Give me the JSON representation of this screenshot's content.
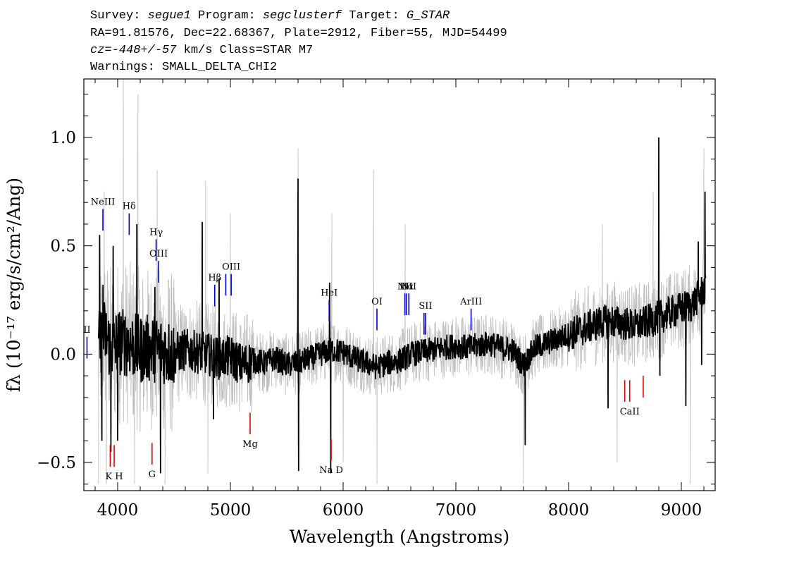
{
  "header": {
    "line1": {
      "l1": "Survey: ",
      "survey": "segue1",
      "l2": " Program: ",
      "program": "segclusterf",
      "l3": " Target: ",
      "target": "G_STAR"
    },
    "line2": "RA=91.81576, Dec=22.68367, Plate=2912, Fiber=55, MJD=54499",
    "line3": {
      "cz": "cz=-448+/-57",
      "rest": " km/s Class=STAR M7"
    },
    "line4": "Warnings: SMALL_DELTA_CHI2"
  },
  "colors": {
    "flux": "#000000",
    "error": "#c0c0c0",
    "emission": "#0000cc",
    "absorption": "#dd0000"
  },
  "chart_data": {
    "type": "line",
    "xlabel": "Wavelength (Angstroms)",
    "ylabel": "fλ (10⁻¹⁷ erg/s/cm²/Ang)",
    "xlim": [
      3700,
      9300
    ],
    "ylim": [
      -0.63,
      1.27
    ],
    "xticks": [
      4000,
      5000,
      6000,
      7000,
      8000,
      9000
    ],
    "yticks": [
      -0.5,
      0.0,
      0.5,
      1.0
    ],
    "ytick_labels": [
      "−0.5",
      "0.0",
      "0.5",
      "1.0"
    ],
    "grid": false,
    "series": [
      {
        "role": "flux",
        "points": [
          [
            3800,
            0.02
          ],
          [
            3840,
            0.05
          ],
          [
            3880,
            0.1
          ],
          [
            3920,
            0.05
          ],
          [
            3960,
            0.03
          ],
          [
            4000,
            0.06
          ],
          [
            4100,
            0.05
          ],
          [
            4200,
            0.02
          ],
          [
            4300,
            0.03
          ],
          [
            4400,
            0.02
          ],
          [
            4500,
            0.0
          ],
          [
            4600,
            0.02
          ],
          [
            4700,
            0.01
          ],
          [
            4800,
            0.0
          ],
          [
            4900,
            -0.02
          ],
          [
            5000,
            -0.01
          ],
          [
            5100,
            -0.05
          ],
          [
            5200,
            -0.03
          ],
          [
            5300,
            -0.04
          ],
          [
            5400,
            -0.02
          ],
          [
            5500,
            -0.05
          ],
          [
            5600,
            -0.04
          ],
          [
            5700,
            -0.02
          ],
          [
            5800,
            0.0
          ],
          [
            5900,
            0.02
          ],
          [
            6000,
            0.01
          ],
          [
            6100,
            -0.02
          ],
          [
            6200,
            -0.04
          ],
          [
            6300,
            -0.06
          ],
          [
            6400,
            -0.04
          ],
          [
            6500,
            -0.03
          ],
          [
            6600,
            0.0
          ],
          [
            6700,
            0.01
          ],
          [
            6800,
            0.02
          ],
          [
            6900,
            0.03
          ],
          [
            7000,
            0.04
          ],
          [
            7100,
            0.03
          ],
          [
            7200,
            0.04
          ],
          [
            7300,
            0.05
          ],
          [
            7400,
            0.03
          ],
          [
            7500,
            0.02
          ],
          [
            7600,
            -0.05
          ],
          [
            7700,
            0.03
          ],
          [
            7800,
            0.05
          ],
          [
            7900,
            0.07
          ],
          [
            8000,
            0.09
          ],
          [
            8100,
            0.11
          ],
          [
            8200,
            0.13
          ],
          [
            8300,
            0.15
          ],
          [
            8400,
            0.15
          ],
          [
            8500,
            0.14
          ],
          [
            8600,
            0.13
          ],
          [
            8700,
            0.15
          ],
          [
            8800,
            0.17
          ],
          [
            8900,
            0.19
          ],
          [
            9000,
            0.21
          ],
          [
            9100,
            0.23
          ],
          [
            9200,
            0.3
          ]
        ],
        "spikes": [
          [
            3840,
            0.55
          ],
          [
            3860,
            -0.4
          ],
          [
            3870,
            0.32
          ],
          [
            3940,
            -0.45
          ],
          [
            3960,
            0.5
          ],
          [
            4000,
            -0.4
          ],
          [
            4170,
            0.6
          ],
          [
            4260,
            -0.1
          ],
          [
            4330,
            0.31
          ],
          [
            4380,
            -0.55
          ],
          [
            4750,
            0.61
          ],
          [
            4850,
            -0.3
          ],
          [
            4900,
            0.35
          ],
          [
            5600,
            0.81
          ],
          [
            5605,
            -0.54
          ],
          [
            5880,
            0.33
          ],
          [
            5890,
            -0.55
          ],
          [
            7615,
            -0.42
          ],
          [
            8350,
            -0.25
          ],
          [
            8800,
            1.0
          ],
          [
            8810,
            -0.1
          ],
          [
            9040,
            -0.24
          ],
          [
            9150,
            0.52
          ],
          [
            9180,
            -0.05
          ],
          [
            9210,
            0.75
          ]
        ]
      },
      {
        "role": "error",
        "spikes": [
          [
            3830,
            -0.6
          ],
          [
            3880,
            0.75
          ],
          [
            3900,
            -0.6
          ],
          [
            4050,
            1.27
          ],
          [
            4150,
            -0.6
          ],
          [
            4180,
            1.2
          ],
          [
            4350,
            0.85
          ],
          [
            4420,
            -0.6
          ],
          [
            4780,
            0.8
          ],
          [
            4800,
            -0.55
          ],
          [
            5000,
            0.65
          ],
          [
            5600,
            0.95
          ],
          [
            5900,
            0.65
          ],
          [
            6000,
            -0.5
          ],
          [
            6270,
            0.85
          ],
          [
            6300,
            -0.6
          ],
          [
            6550,
            0.6
          ],
          [
            7600,
            -0.6
          ],
          [
            8300,
            0.6
          ],
          [
            8430,
            -0.5
          ],
          [
            8750,
            0.75
          ],
          [
            8800,
            0.88
          ],
          [
            9080,
            -0.6
          ],
          [
            9200,
            0.95
          ]
        ]
      }
    ],
    "emission_lines": [
      {
        "label": "II",
        "x": 3728,
        "y1": -0.02,
        "y2": 0.08
      },
      {
        "label": "NeIII",
        "x": 3869,
        "y1": 0.57,
        "y2": 0.67
      },
      {
        "label": "Hδ",
        "x": 4102,
        "y1": 0.55,
        "y2": 0.65
      },
      {
        "label": "Hγ",
        "x": 4341,
        "y1": 0.43,
        "y2": 0.53
      },
      {
        "label": "OIII",
        "x": 4363,
        "y1": 0.33,
        "y2": 0.43
      },
      {
        "label": "Hβ",
        "x": 4861,
        "y1": 0.22,
        "y2": 0.32
      },
      {
        "label": "",
        "x": 4959,
        "y1": 0.27,
        "y2": 0.37
      },
      {
        "label": "OIII",
        "x": 5007,
        "y1": 0.27,
        "y2": 0.37
      },
      {
        "label": "HeI",
        "x": 5876,
        "y1": 0.15,
        "y2": 0.25
      },
      {
        "label": "OI",
        "x": 6300,
        "y1": 0.11,
        "y2": 0.21
      },
      {
        "label": "NII",
        "x": 6548,
        "y1": 0.18,
        "y2": 0.28
      },
      {
        "label": "Hα",
        "x": 6563,
        "y1": 0.18,
        "y2": 0.28
      },
      {
        "label": "NII",
        "x": 6583,
        "y1": 0.18,
        "y2": 0.28
      },
      {
        "label": "",
        "x": 6717,
        "y1": 0.09,
        "y2": 0.19
      },
      {
        "label": "SII",
        "x": 6731,
        "y1": 0.09,
        "y2": 0.19
      },
      {
        "label": "ArIII",
        "x": 7135,
        "y1": 0.11,
        "y2": 0.21
      }
    ],
    "absorption_lines": [
      {
        "label": "",
        "x": 3934,
        "y1": -0.42,
        "y2": -0.52
      },
      {
        "label": "K H",
        "x": 3969,
        "y1": -0.42,
        "y2": -0.52
      },
      {
        "label": "G",
        "x": 4305,
        "y1": -0.41,
        "y2": -0.51
      },
      {
        "label": "Mg",
        "x": 5175,
        "y1": -0.27,
        "y2": -0.37
      },
      {
        "label": "Na D",
        "x": 5894,
        "y1": -0.39,
        "y2": -0.49
      },
      {
        "label": "",
        "x": 8498,
        "y1": -0.12,
        "y2": -0.22
      },
      {
        "label": "CaII",
        "x": 8542,
        "y1": -0.12,
        "y2": -0.22
      },
      {
        "label": "",
        "x": 8662,
        "y1": -0.1,
        "y2": -0.2
      }
    ]
  }
}
